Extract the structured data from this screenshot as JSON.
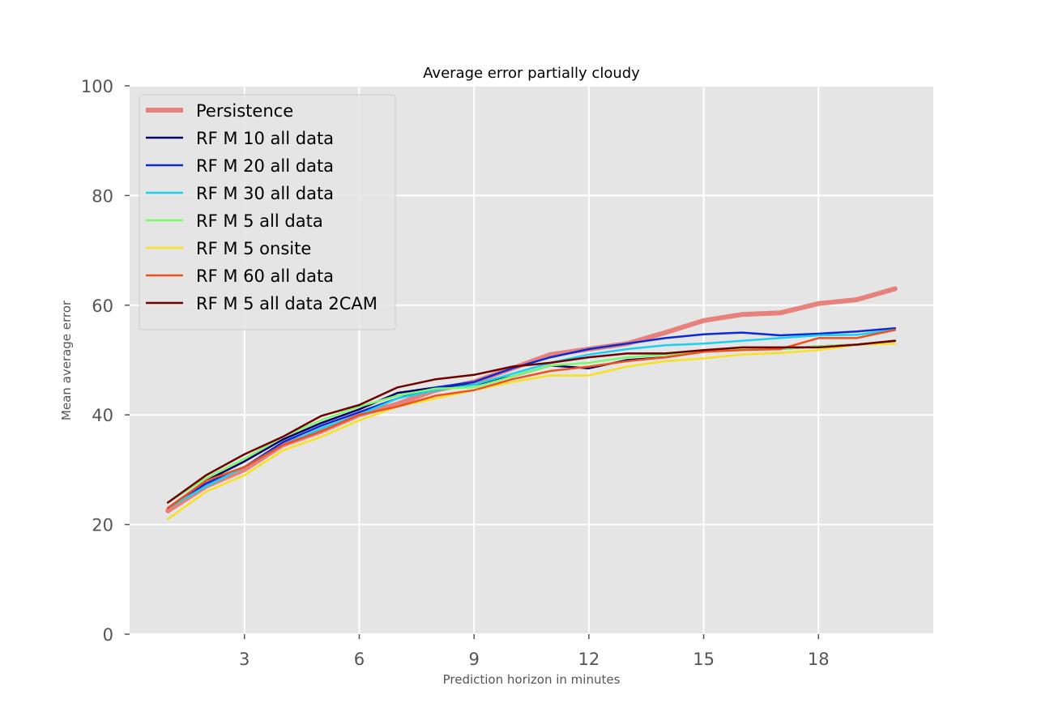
{
  "chart_data": {
    "type": "line",
    "title": "Average error partially cloudy",
    "xlabel": "Prediction horizon in minutes",
    "ylabel": "Mean average error",
    "xlim": [
      0,
      21
    ],
    "ylim": [
      0,
      100
    ],
    "xticks": [
      3,
      6,
      9,
      12,
      15,
      18
    ],
    "yticks": [
      0,
      20,
      40,
      60,
      80,
      100
    ],
    "grid": true,
    "legend_position": "top-left",
    "background": "#e5e5e5",
    "x": [
      1,
      2,
      3,
      4,
      5,
      6,
      7,
      8,
      9,
      10,
      11,
      12,
      13,
      14,
      15,
      16,
      17,
      18,
      19,
      20
    ],
    "series": [
      {
        "name": "Persistence",
        "color": "#e8706a",
        "emphasis": true,
        "values": [
          22.5,
          27.0,
          30.0,
          34.5,
          37.0,
          40.0,
          42.0,
          44.5,
          46.0,
          48.5,
          51.0,
          52.0,
          53.0,
          55.0,
          57.2,
          58.3,
          58.6,
          60.3,
          61.0,
          63.0
        ]
      },
      {
        "name": "RF M 10 all data",
        "color": "#000066",
        "values": [
          23.0,
          28.0,
          31.5,
          35.5,
          38.5,
          41.0,
          44.0,
          45.0,
          45.5,
          47.0,
          49.0,
          48.5,
          50.0,
          50.5,
          51.5,
          52.0,
          52.0,
          52.5,
          52.8,
          53.5
        ]
      },
      {
        "name": "RF M 20 all data",
        "color": "#0a2ad6",
        "values": [
          23.0,
          27.5,
          30.5,
          35.0,
          38.0,
          40.5,
          43.0,
          45.0,
          46.0,
          48.5,
          50.5,
          52.0,
          53.0,
          54.0,
          54.7,
          55.0,
          54.5,
          54.8,
          55.2,
          55.8
        ]
      },
      {
        "name": "RF M 30 all data",
        "color": "#1ad0f0",
        "values": [
          23.0,
          27.0,
          30.5,
          34.5,
          37.5,
          40.0,
          43.0,
          44.5,
          45.5,
          47.5,
          49.5,
          51.0,
          52.0,
          52.7,
          53.0,
          53.5,
          54.0,
          54.5,
          54.6,
          55.5
        ]
      },
      {
        "name": "RF M 5 all data",
        "color": "#7cf86a",
        "values": [
          24.0,
          28.5,
          32.0,
          36.0,
          39.0,
          41.5,
          43.5,
          44.8,
          45.0,
          47.0,
          49.0,
          49.5,
          50.5,
          51.0,
          51.5,
          52.0,
          52.0,
          52.5,
          52.8,
          53.0
        ]
      },
      {
        "name": "RF M 5 onsite",
        "color": "#f8e020",
        "values": [
          21.0,
          26.0,
          29.0,
          33.5,
          36.0,
          39.0,
          41.5,
          43.0,
          44.5,
          46.0,
          47.2,
          47.2,
          48.8,
          49.8,
          50.3,
          51.0,
          51.3,
          51.8,
          52.8,
          53.0
        ]
      },
      {
        "name": "RF M 60 all data",
        "color": "#f0501c",
        "values": [
          23.0,
          28.0,
          30.5,
          34.5,
          37.0,
          40.0,
          41.5,
          43.5,
          44.5,
          46.5,
          48.0,
          48.8,
          49.8,
          50.5,
          51.5,
          51.8,
          52.0,
          54.0,
          54.0,
          55.5
        ]
      },
      {
        "name": "RF M 5 all data 2CAM",
        "color": "#6e0000",
        "values": [
          24.0,
          29.0,
          32.8,
          36.0,
          39.8,
          41.8,
          45.0,
          46.5,
          47.3,
          48.8,
          49.5,
          50.5,
          51.2,
          51.2,
          51.8,
          52.3,
          52.3,
          52.3,
          52.8,
          53.5
        ]
      }
    ]
  }
}
